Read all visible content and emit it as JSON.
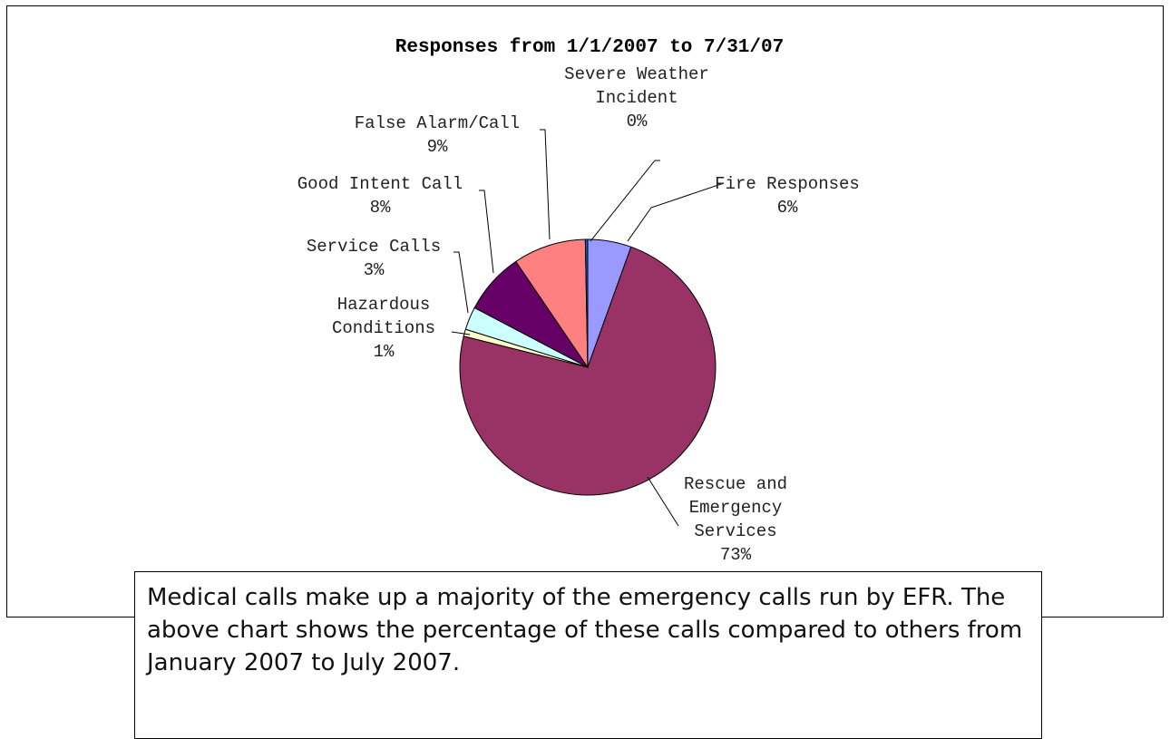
{
  "chart_data": {
    "type": "pie",
    "title": "Responses from 1/1/2007 to 7/31/07",
    "slices": [
      {
        "label": [
          "Fire Responses"
        ],
        "pct_label": "6%",
        "value": 5.5,
        "color": "#9999ff"
      },
      {
        "label": [
          "Rescue and",
          "Emergency",
          "Services"
        ],
        "pct_label": "73%",
        "value": 73.4,
        "color": "#993366"
      },
      {
        "label": [
          "Hazardous",
          "Conditions"
        ],
        "pct_label": "1%",
        "value": 0.9,
        "color": "#ffffcc"
      },
      {
        "label": [
          "Service Calls"
        ],
        "pct_label": "3%",
        "value": 2.9,
        "color": "#ccffff"
      },
      {
        "label": [
          "Good Intent Call"
        ],
        "pct_label": "8%",
        "value": 7.8,
        "color": "#660066"
      },
      {
        "label": [
          "False Alarm/Call"
        ],
        "pct_label": "9%",
        "value": 9.2,
        "color": "#ff8080"
      },
      {
        "label": [
          "Severe Weather",
          "Incident"
        ],
        "pct_label": "0%",
        "value": 0.3,
        "color": "#0066cc"
      }
    ]
  },
  "caption": {
    "text": "Medical calls make up a majority of the emergency calls run by EFR. The above chart shows the percentage of these calls compared to others from January 2007 to July 2007."
  }
}
